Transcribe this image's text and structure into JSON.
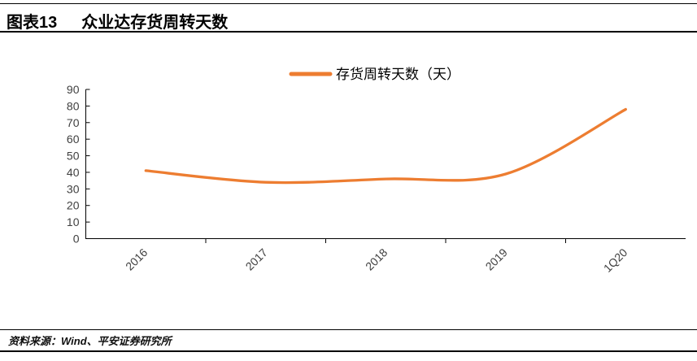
{
  "header": {
    "figure_label": "图表13",
    "figure_title": "众业达存货周转天数"
  },
  "footer": {
    "source": "资料来源：Wind、平安证券研究所"
  },
  "chart_data": {
    "type": "line",
    "title": "",
    "xlabel": "",
    "ylabel": "",
    "categories": [
      "2016",
      "2017",
      "2018",
      "2019",
      "1Q20"
    ],
    "series": [
      {
        "name": "存货周转天数（天）",
        "values": [
          41,
          34,
          36,
          39,
          78
        ],
        "color": "#ED7D31",
        "line_style": "smooth"
      }
    ],
    "ylim": [
      0,
      90
    ],
    "ytick_step": 10,
    "yticks": [
      0,
      10,
      20,
      30,
      40,
      50,
      60,
      70,
      80,
      90
    ],
    "grid": false,
    "legend_position": "top-center",
    "x_label_rotation_deg": -45,
    "axis_color": "#000000",
    "tick_label_color": "#404040"
  }
}
